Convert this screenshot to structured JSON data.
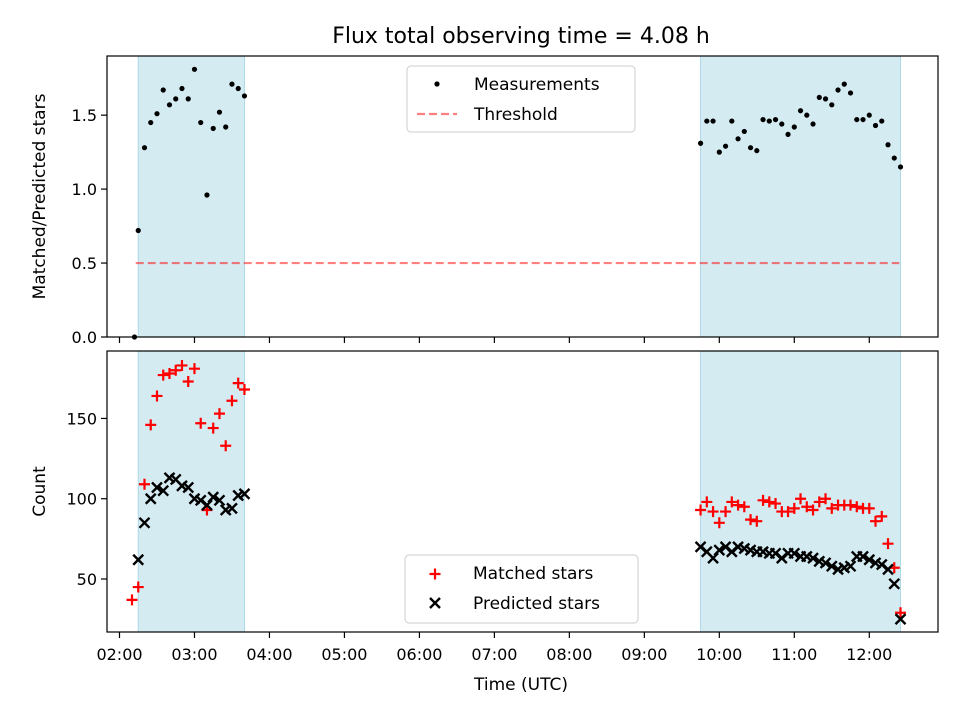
{
  "figure": {
    "title": "Flux total observing time = 4.08 h",
    "xlabel": "Time (UTC)",
    "x_ticks": [
      "02:00",
      "03:00",
      "04:00",
      "05:00",
      "06:00",
      "07:00",
      "08:00",
      "09:00",
      "10:00",
      "11:00",
      "12:00"
    ]
  },
  "colors": {
    "shade": "#add8e6",
    "threshold": "#ff0000",
    "matched": "#ff0000",
    "predicted": "#000000",
    "measurement": "#000000"
  },
  "chart_data": [
    {
      "type": "scatter",
      "panel": "top",
      "ylabel": "Matched/Predicted stars",
      "x_unit": "time (UTC)",
      "xlim": [
        "01:50",
        "12:55"
      ],
      "ylim": [
        0,
        1.9
      ],
      "y_ticks": [
        "0.0",
        "0.5",
        "1.0",
        "1.5"
      ],
      "y_tick_values": [
        0,
        0.5,
        1.0,
        1.5
      ],
      "shaded_intervals": [
        [
          "02:15",
          "03:40"
        ],
        [
          "09:45",
          "12:25"
        ]
      ],
      "legend": {
        "placement": "top-center",
        "entries": [
          "Measurements",
          "Threshold"
        ]
      },
      "threshold": {
        "name": "Threshold",
        "y": 0.5,
        "x_range": [
          "02:13",
          "12:24"
        ],
        "style": "dashed"
      },
      "series": [
        {
          "name": "Measurements",
          "marker": "dot",
          "points": [
            [
              "02:12",
              0.0
            ],
            [
              "02:15",
              0.72
            ],
            [
              "02:20",
              1.28
            ],
            [
              "02:25",
              1.45
            ],
            [
              "02:30",
              1.51
            ],
            [
              "02:35",
              1.67
            ],
            [
              "02:40",
              1.57
            ],
            [
              "02:45",
              1.61
            ],
            [
              "02:50",
              1.68
            ],
            [
              "02:55",
              1.61
            ],
            [
              "03:00",
              1.81
            ],
            [
              "03:05",
              1.45
            ],
            [
              "03:10",
              0.96
            ],
            [
              "03:15",
              1.41
            ],
            [
              "03:20",
              1.52
            ],
            [
              "03:25",
              1.42
            ],
            [
              "03:30",
              1.71
            ],
            [
              "03:35",
              1.68
            ],
            [
              "03:40",
              1.63
            ],
            [
              "09:45",
              1.31
            ],
            [
              "09:50",
              1.46
            ],
            [
              "09:55",
              1.46
            ],
            [
              "10:00",
              1.25
            ],
            [
              "10:05",
              1.29
            ],
            [
              "10:10",
              1.46
            ],
            [
              "10:15",
              1.34
            ],
            [
              "10:20",
              1.39
            ],
            [
              "10:25",
              1.28
            ],
            [
              "10:30",
              1.26
            ],
            [
              "10:35",
              1.47
            ],
            [
              "10:40",
              1.46
            ],
            [
              "10:45",
              1.47
            ],
            [
              "10:50",
              1.44
            ],
            [
              "10:55",
              1.37
            ],
            [
              "11:00",
              1.42
            ],
            [
              "11:05",
              1.53
            ],
            [
              "11:10",
              1.5
            ],
            [
              "11:15",
              1.44
            ],
            [
              "11:20",
              1.62
            ],
            [
              "11:25",
              1.61
            ],
            [
              "11:30",
              1.57
            ],
            [
              "11:35",
              1.67
            ],
            [
              "11:40",
              1.71
            ],
            [
              "11:45",
              1.65
            ],
            [
              "11:50",
              1.47
            ],
            [
              "11:55",
              1.47
            ],
            [
              "12:00",
              1.5
            ],
            [
              "12:05",
              1.43
            ],
            [
              "12:10",
              1.46
            ],
            [
              "12:15",
              1.3
            ],
            [
              "12:20",
              1.21
            ],
            [
              "12:25",
              1.15
            ]
          ]
        }
      ]
    },
    {
      "type": "scatter",
      "panel": "bottom",
      "ylabel": "Count",
      "x_unit": "time (UTC)",
      "xlim": [
        "01:50",
        "12:55"
      ],
      "ylim": [
        17,
        192
      ],
      "y_ticks": [
        "50",
        "100",
        "150"
      ],
      "y_tick_values": [
        50,
        100,
        150
      ],
      "shaded_intervals": [
        [
          "02:15",
          "03:40"
        ],
        [
          "09:45",
          "12:25"
        ]
      ],
      "legend": {
        "placement": "bottom-center",
        "entries": [
          "Matched stars",
          "Predicted stars"
        ]
      },
      "series": [
        {
          "name": "Matched stars",
          "marker": "plus",
          "points": [
            [
              "02:10",
              37
            ],
            [
              "02:15",
              45
            ],
            [
              "02:20",
              109
            ],
            [
              "02:25",
              146
            ],
            [
              "02:30",
              164
            ],
            [
              "02:35",
              177
            ],
            [
              "02:40",
              178
            ],
            [
              "02:45",
              180
            ],
            [
              "02:50",
              183
            ],
            [
              "02:55",
              173
            ],
            [
              "03:00",
              181
            ],
            [
              "03:05",
              147
            ],
            [
              "03:10",
              93
            ],
            [
              "03:15",
              144
            ],
            [
              "03:20",
              153
            ],
            [
              "03:25",
              133
            ],
            [
              "03:30",
              161
            ],
            [
              "03:35",
              172
            ],
            [
              "03:40",
              168
            ],
            [
              "09:45",
              93
            ],
            [
              "09:50",
              98
            ],
            [
              "09:55",
              92
            ],
            [
              "10:00",
              85
            ],
            [
              "10:05",
              92
            ],
            [
              "10:10",
              98
            ],
            [
              "10:15",
              96
            ],
            [
              "10:20",
              95
            ],
            [
              "10:25",
              87
            ],
            [
              "10:30",
              86
            ],
            [
              "10:35",
              99
            ],
            [
              "10:40",
              98
            ],
            [
              "10:45",
              97
            ],
            [
              "10:50",
              92
            ],
            [
              "10:55",
              92
            ],
            [
              "11:00",
              94
            ],
            [
              "11:05",
              100
            ],
            [
              "11:10",
              95
            ],
            [
              "11:15",
              93
            ],
            [
              "11:20",
              98
            ],
            [
              "11:25",
              100
            ],
            [
              "11:30",
              94
            ],
            [
              "11:35",
              96
            ],
            [
              "11:40",
              96
            ],
            [
              "11:45",
              96
            ],
            [
              "11:50",
              95
            ],
            [
              "11:55",
              94
            ],
            [
              "12:00",
              94
            ],
            [
              "12:05",
              86
            ],
            [
              "12:10",
              89
            ],
            [
              "12:15",
              72
            ],
            [
              "12:20",
              57
            ],
            [
              "12:25",
              29
            ]
          ]
        },
        {
          "name": "Predicted stars",
          "marker": "x",
          "points": [
            [
              "02:15",
              62
            ],
            [
              "02:20",
              85
            ],
            [
              "02:25",
              100
            ],
            [
              "02:30",
              107
            ],
            [
              "02:35",
              105
            ],
            [
              "02:40",
              113
            ],
            [
              "02:45",
              112
            ],
            [
              "02:50",
              108
            ],
            [
              "02:55",
              107
            ],
            [
              "03:00",
              100
            ],
            [
              "03:05",
              99
            ],
            [
              "03:10",
              96
            ],
            [
              "03:15",
              101
            ],
            [
              "03:20",
              99
            ],
            [
              "03:25",
              93
            ],
            [
              "03:30",
              94
            ],
            [
              "03:35",
              102
            ],
            [
              "03:40",
              103
            ],
            [
              "09:45",
              70
            ],
            [
              "09:50",
              67
            ],
            [
              "09:55",
              63
            ],
            [
              "10:00",
              68
            ],
            [
              "10:05",
              70
            ],
            [
              "10:10",
              67
            ],
            [
              "10:15",
              70
            ],
            [
              "10:20",
              69
            ],
            [
              "10:25",
              68
            ],
            [
              "10:30",
              67
            ],
            [
              "10:35",
              67
            ],
            [
              "10:40",
              66
            ],
            [
              "10:45",
              66
            ],
            [
              "10:50",
              63
            ],
            [
              "10:55",
              66
            ],
            [
              "11:00",
              66
            ],
            [
              "11:05",
              64
            ],
            [
              "11:10",
              64
            ],
            [
              "11:15",
              63
            ],
            [
              "11:20",
              61
            ],
            [
              "11:25",
              60
            ],
            [
              "11:30",
              58
            ],
            [
              "11:35",
              56
            ],
            [
              "11:40",
              57
            ],
            [
              "11:45",
              58
            ],
            [
              "11:50",
              64
            ],
            [
              "11:55",
              64
            ],
            [
              "12:00",
              62
            ],
            [
              "12:05",
              60
            ],
            [
              "12:10",
              59
            ],
            [
              "12:15",
              56
            ],
            [
              "12:20",
              47
            ],
            [
              "12:25",
              25
            ]
          ]
        }
      ]
    }
  ]
}
